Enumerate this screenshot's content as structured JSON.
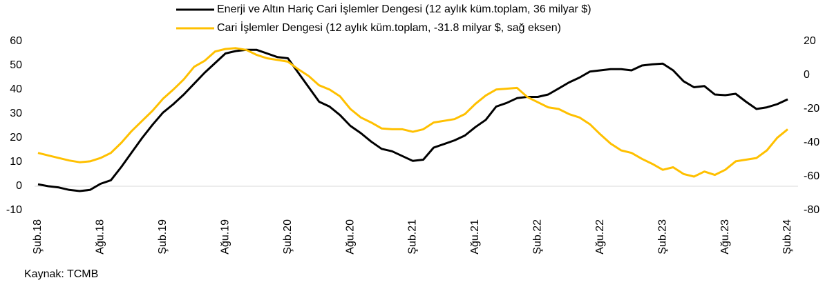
{
  "chart_data": {
    "type": "line",
    "categories": [
      "Şub.18",
      null,
      null,
      null,
      null,
      null,
      "Ağu.18",
      null,
      null,
      null,
      null,
      null,
      "Şub.19",
      null,
      null,
      null,
      null,
      null,
      "Ağu.19",
      null,
      null,
      null,
      null,
      null,
      "Şub.20",
      null,
      null,
      null,
      null,
      null,
      "Ağu.20",
      null,
      null,
      null,
      null,
      null,
      "Şub.21",
      null,
      null,
      null,
      null,
      null,
      "Ağu.21",
      null,
      null,
      null,
      null,
      null,
      "Şub.22",
      null,
      null,
      null,
      null,
      null,
      "Ağu.22",
      null,
      null,
      null,
      null,
      null,
      "Şub.23",
      null,
      null,
      null,
      null,
      null,
      "Ağu.23",
      null,
      null,
      null,
      null,
      null,
      "Şub.24"
    ],
    "series": [
      {
        "name": "Enerji ve Altın Hariç Cari İşlemler Dengesi (12 aylık küm.toplam, 36 milyar $)",
        "color": "#000000",
        "values": [
          0.8,
          0,
          -0.5,
          -1.5,
          -2,
          -1.5,
          1,
          2.5,
          8,
          14,
          20,
          25.5,
          30.5,
          34,
          38,
          42.5,
          47,
          51,
          55,
          56,
          56.5,
          56.5,
          55,
          53.5,
          53,
          47,
          41,
          35,
          33,
          29.5,
          25,
          22,
          18.5,
          15.5,
          14.5,
          12.5,
          10.5,
          11,
          16,
          17.5,
          19,
          21,
          24.5,
          27.5,
          33,
          34.5,
          36.5,
          37,
          37,
          38,
          40.5,
          43,
          45,
          47.5,
          48,
          48.5,
          48.5,
          48,
          50,
          50.5,
          50.8,
          48,
          43.5,
          41,
          41.5,
          38,
          37.7,
          38.3,
          35,
          32,
          32.7,
          34,
          36
        ]
      },
      {
        "name": "Cari İşlemler Dengesi (12 aylık küm.toplam, -31.8 milyar $, sağ eksen)",
        "color": "#FFC000",
        "axis": "y2",
        "values": [
          -46,
          -47.5,
          -49,
          -50.5,
          -51.5,
          -51,
          -49,
          -46,
          -40,
          -33,
          -27,
          -21,
          -14,
          -8.5,
          -2.5,
          5,
          8.5,
          14,
          15.5,
          16,
          15,
          12,
          10,
          9,
          8,
          3.5,
          -0.5,
          -6,
          -8.5,
          -12.5,
          -20,
          -25,
          -28,
          -31.5,
          -32,
          -32,
          -33.5,
          -32,
          -28,
          -27,
          -26,
          -23,
          -17,
          -12,
          -8.5,
          -8,
          -7.5,
          -13,
          -16,
          -19,
          -20,
          -23,
          -25,
          -29,
          -35,
          -40.5,
          -44.5,
          -46,
          -49.5,
          -52.5,
          -56,
          -54.5,
          -58.5,
          -60,
          -57,
          -59,
          -56,
          -51,
          -50,
          -49,
          -44.5,
          -37,
          -32
        ]
      }
    ],
    "ylim": [
      -10,
      60
    ],
    "yticks": [
      -10,
      0,
      10,
      20,
      30,
      40,
      50,
      60
    ],
    "y2lim": [
      -80,
      20
    ],
    "y2ticks": [
      -80,
      -60,
      -40,
      -20,
      0,
      20
    ],
    "legend": "top",
    "source": "Kaynak: TCMB"
  }
}
